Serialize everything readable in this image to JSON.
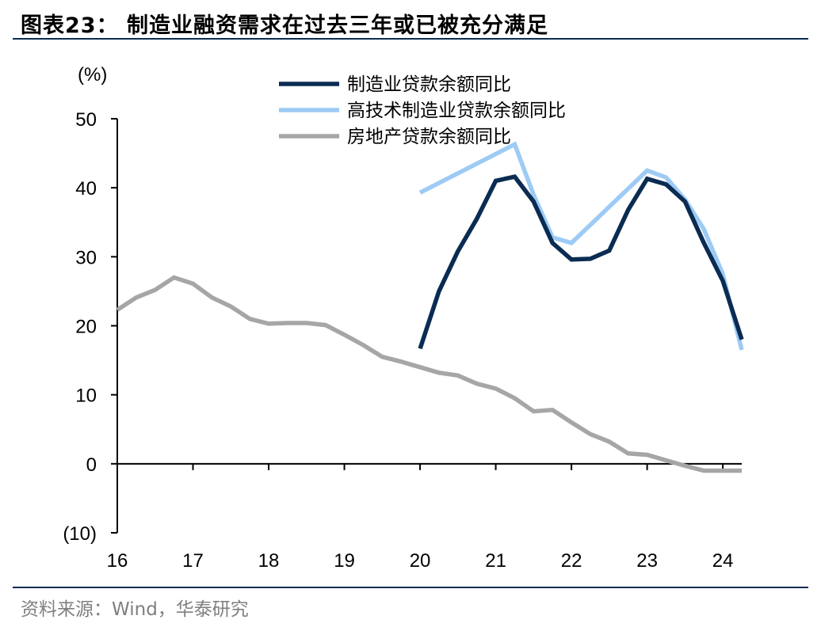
{
  "header": {
    "title": "图表23：  制造业融资需求在过去三年或已被充分满足"
  },
  "footer": {
    "source": "资料来源：Wind，华泰研究"
  },
  "chart_data": {
    "type": "line",
    "ylabel": "(%)",
    "ylim": [
      -10,
      50
    ],
    "yticks": [
      50,
      40,
      30,
      20,
      10,
      0,
      -10
    ],
    "ytick_labels": [
      "50",
      "40",
      "30",
      "20",
      "10",
      "0",
      "(10)"
    ],
    "xlim": [
      16,
      24.25
    ],
    "xticks": [
      16,
      17,
      18,
      19,
      20,
      21,
      22,
      23,
      24
    ],
    "xtick_labels": [
      "16",
      "17",
      "18",
      "19",
      "20",
      "21",
      "22",
      "23",
      "24"
    ],
    "legend_position": "top",
    "grid": false,
    "series": [
      {
        "name": "制造业贷款余额同比",
        "color": "#0b2c52",
        "points": [
          [
            20.0,
            16.7
          ],
          [
            20.25,
            25.0
          ],
          [
            20.5,
            30.8
          ],
          [
            20.75,
            35.5
          ],
          [
            21.0,
            41.0
          ],
          [
            21.25,
            41.6
          ],
          [
            21.5,
            38.0
          ],
          [
            21.75,
            32.0
          ],
          [
            22.0,
            29.6
          ],
          [
            22.25,
            29.7
          ],
          [
            22.5,
            30.9
          ],
          [
            22.75,
            36.8
          ],
          [
            23.0,
            41.3
          ],
          [
            23.25,
            40.5
          ],
          [
            23.5,
            38.0
          ],
          [
            23.75,
            32.0
          ],
          [
            24.0,
            26.5
          ],
          [
            24.25,
            18.0
          ]
        ]
      },
      {
        "name": "高技术制造业贷款余额同比",
        "color": "#9dcbf5",
        "points": [
          [
            20.0,
            39.3
          ],
          [
            21.25,
            46.3
          ],
          [
            21.5,
            39.0
          ],
          [
            21.75,
            32.8
          ],
          [
            22.0,
            32.0
          ],
          [
            23.0,
            42.5
          ],
          [
            23.25,
            41.5
          ],
          [
            23.5,
            38.3
          ],
          [
            23.75,
            34.0
          ],
          [
            24.0,
            27.5
          ],
          [
            24.25,
            16.5
          ]
        ]
      },
      {
        "name": "房地产贷款余额同比",
        "color": "#a6a6a6",
        "points": [
          [
            16.0,
            22.3
          ],
          [
            16.25,
            24.1
          ],
          [
            16.5,
            25.2
          ],
          [
            16.75,
            27.0
          ],
          [
            17.0,
            26.1
          ],
          [
            17.25,
            24.1
          ],
          [
            17.5,
            22.8
          ],
          [
            17.75,
            21.0
          ],
          [
            18.0,
            20.3
          ],
          [
            18.25,
            20.4
          ],
          [
            18.5,
            20.4
          ],
          [
            18.75,
            20.1
          ],
          [
            19.0,
            18.7
          ],
          [
            19.25,
            17.2
          ],
          [
            19.5,
            15.5
          ],
          [
            19.75,
            14.8
          ],
          [
            20.0,
            14.0
          ],
          [
            20.25,
            13.2
          ],
          [
            20.5,
            12.8
          ],
          [
            20.75,
            11.6
          ],
          [
            21.0,
            10.9
          ],
          [
            21.25,
            9.5
          ],
          [
            21.5,
            7.6
          ],
          [
            21.75,
            7.8
          ],
          [
            22.0,
            6.0
          ],
          [
            22.25,
            4.3
          ],
          [
            22.5,
            3.2
          ],
          [
            22.75,
            1.5
          ],
          [
            23.0,
            1.3
          ],
          [
            23.25,
            0.5
          ],
          [
            23.5,
            -0.3
          ],
          [
            23.75,
            -1.0
          ],
          [
            24.0,
            -1.0
          ],
          [
            24.25,
            -1.0
          ]
        ]
      }
    ]
  }
}
